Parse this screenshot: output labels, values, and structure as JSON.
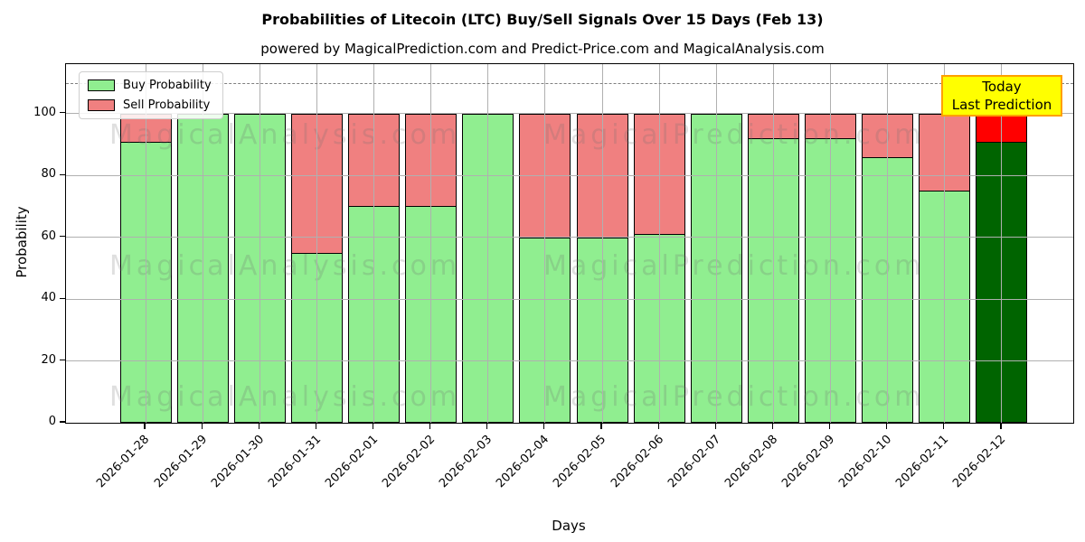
{
  "title": "Probabilities of Litecoin (LTC) Buy/Sell Signals Over 15 Days (Feb 13)",
  "subtitle": "powered by MagicalPrediction.com and Predict-Price.com and MagicalAnalysis.com",
  "legend": {
    "buy_label": "Buy Probability",
    "sell_label": "Sell Probability"
  },
  "annotation": {
    "line1": "Today",
    "line2": "Last Prediction",
    "bg_color": "#ffff00",
    "border_color": "#ffa000"
  },
  "watermarks": {
    "left": "MagicalAnalysis.com",
    "right": "MagicalPrediction.com"
  },
  "colors": {
    "buy": "#90ee90",
    "sell": "#f08080",
    "today_buy": "#006400",
    "today_sell": "#ff0000",
    "grid": "#b0b0b0",
    "dashed": "#7f7f7f",
    "bar_edge": "#000000"
  },
  "chart_data": {
    "type": "bar",
    "stacked": true,
    "title": "Probabilities of Litecoin (LTC) Buy/Sell Signals Over 15 Days (Feb 13)",
    "xlabel": "Days",
    "ylabel": "Probability",
    "categories": [
      "2026-01-28",
      "2026-01-29",
      "2026-01-30",
      "2026-01-31",
      "2026-02-01",
      "2026-02-02",
      "2026-02-03",
      "2026-02-04",
      "2026-02-05",
      "2026-02-06",
      "2026-02-07",
      "2026-02-08",
      "2026-02-09",
      "2026-02-10",
      "2026-02-11",
      "2026-02-12"
    ],
    "series": [
      {
        "name": "Buy Probability",
        "color": "#90ee90",
        "values": [
          91,
          100,
          100,
          55,
          70,
          70,
          100,
          60,
          60,
          61,
          100,
          92,
          92,
          86,
          75,
          91
        ]
      },
      {
        "name": "Sell Probability",
        "color": "#f08080",
        "values": [
          9,
          0,
          0,
          45,
          30,
          30,
          0,
          40,
          40,
          39,
          0,
          8,
          8,
          14,
          25,
          9
        ]
      }
    ],
    "today_bar": {
      "index": 15,
      "buy_color": "#006400",
      "sell_color": "#ff0000"
    },
    "yticks": [
      0,
      20,
      40,
      60,
      80,
      100
    ],
    "ylim": [
      0,
      116
    ],
    "dashed_line_y": 110,
    "grid": true,
    "legend_position": "upper left"
  }
}
